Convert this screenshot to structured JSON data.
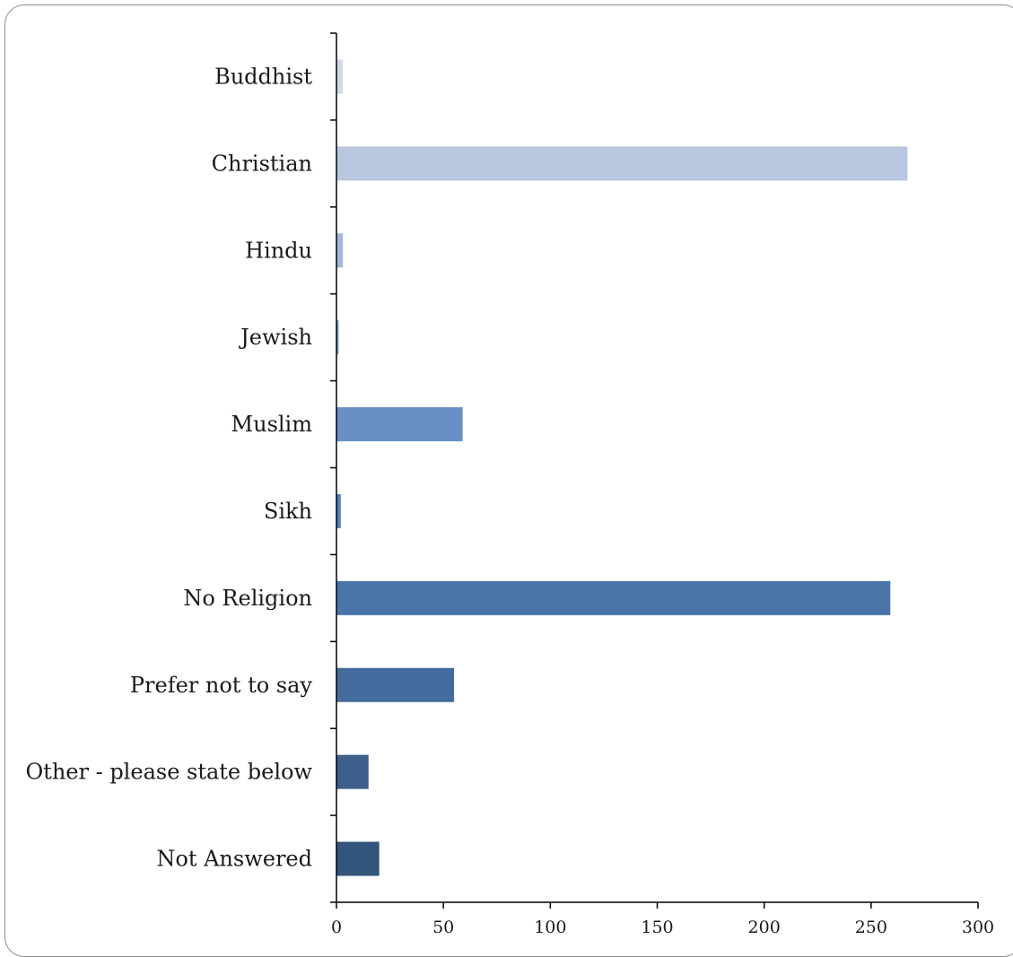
{
  "chart_data": {
    "type": "bar",
    "orientation": "horizontal",
    "title": "",
    "xlabel": "",
    "ylabel": "",
    "xlim": [
      0,
      300
    ],
    "xticks": [
      "0",
      "50",
      "100",
      "150",
      "200",
      "250",
      "300"
    ],
    "grid": false,
    "categories": [
      "Buddhist",
      "Christian",
      "Hindu",
      "Jewish",
      "Muslim",
      "Sikh",
      "No Religion",
      "Prefer not to say",
      "Other - please state below",
      "Not Answered"
    ],
    "values": [
      3,
      267,
      3,
      1,
      59,
      2,
      259,
      55,
      15,
      20
    ],
    "colors": [
      "#d1d9ea",
      "#b9c6e0",
      "#a3b8dc",
      "#7a98c8",
      "#6890c5",
      "#4d7fbe",
      "#4874aa",
      "#436b9d",
      "#3c5f8c",
      "#32557c"
    ]
  }
}
